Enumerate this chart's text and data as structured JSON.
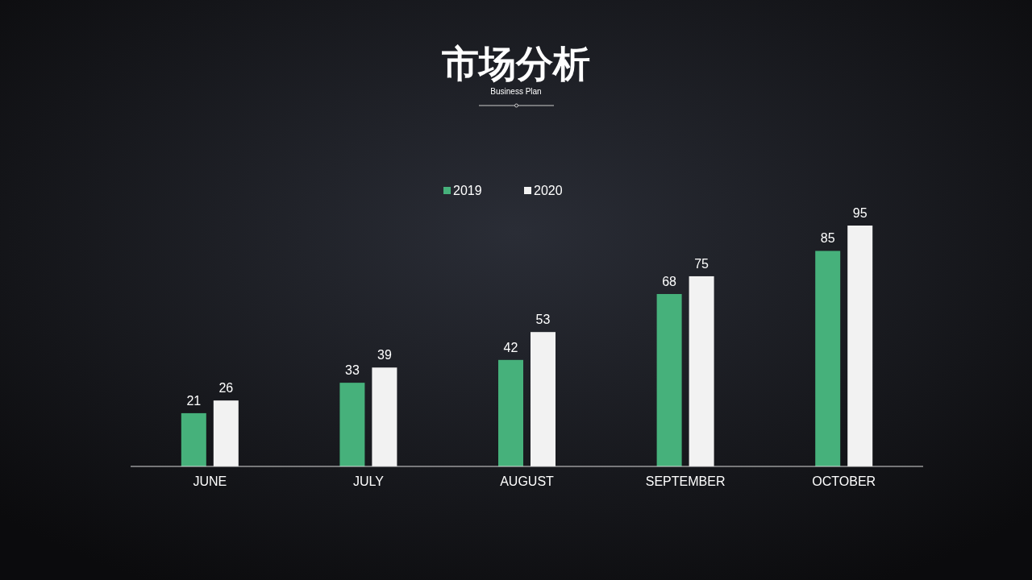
{
  "chart_data": {
    "type": "bar",
    "title": "市场分析",
    "subtitle": "Business Plan",
    "categories": [
      "JUNE",
      "JULY",
      "AUGUST",
      "SEPTEMBER",
      "OCTOBER"
    ],
    "series": [
      {
        "name": "2019",
        "color": "#46b17b",
        "values": [
          21,
          33,
          42,
          68,
          85
        ]
      },
      {
        "name": "2020",
        "color": "#f2f2f2",
        "values": [
          26,
          39,
          53,
          75,
          95
        ]
      }
    ],
    "data_labels": true,
    "legend": "top"
  }
}
